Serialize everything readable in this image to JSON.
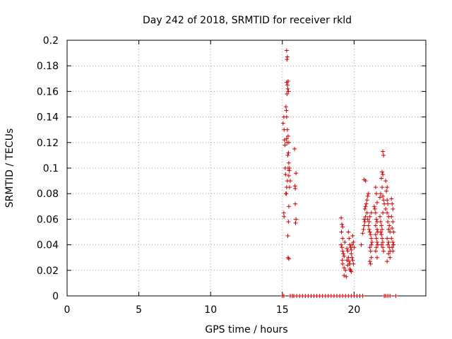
{
  "chart_data": {
    "type": "scatter",
    "title": "Day 242 of 2018, SRMTID for receiver rkld",
    "xlabel": "GPS time / hours",
    "ylabel": "SRMTID / TECUs",
    "xlim": [
      0,
      25
    ],
    "ylim": [
      0,
      0.2
    ],
    "xticks": [
      0,
      5,
      10,
      15,
      20
    ],
    "xtick_labels": [
      "0",
      "5",
      "10",
      "15",
      "20"
    ],
    "yticks": [
      0,
      0.02,
      0.04,
      0.06,
      0.08,
      0.1,
      0.12,
      0.14,
      0.16,
      0.18,
      0.2
    ],
    "ytick_labels": [
      "0",
      "0.02",
      "0.04",
      "0.06",
      "0.08",
      "0.1",
      "0.12",
      "0.14",
      "0.16",
      "0.18",
      "0.2"
    ],
    "grid": true,
    "marker": "+",
    "marker_color": "#cc0000",
    "series": [
      {
        "name": "SRMTID",
        "points": [
          [
            15.0,
            0.0
          ],
          [
            15.1,
            0.0
          ],
          [
            15.05,
            0.135
          ],
          [
            15.1,
            0.14
          ],
          [
            15.12,
            0.13
          ],
          [
            15.15,
            0.122
          ],
          [
            15.18,
            0.118
          ],
          [
            15.2,
            0.1
          ],
          [
            15.22,
            0.095
          ],
          [
            15.25,
            0.08
          ],
          [
            15.1,
            0.065
          ],
          [
            15.12,
            0.062
          ],
          [
            15.25,
            0.148
          ],
          [
            15.28,
            0.145
          ],
          [
            15.3,
            0.14
          ],
          [
            15.3,
            0.123
          ],
          [
            15.32,
            0.12
          ],
          [
            15.35,
            0.13
          ],
          [
            15.38,
            0.11
          ],
          [
            15.4,
            0.1
          ],
          [
            15.35,
            0.09
          ],
          [
            15.3,
            0.085
          ],
          [
            15.28,
            0.08
          ],
          [
            15.3,
            0.192
          ],
          [
            15.35,
            0.187
          ],
          [
            15.32,
            0.185
          ],
          [
            15.3,
            0.167
          ],
          [
            15.35,
            0.165
          ],
          [
            15.38,
            0.162
          ],
          [
            15.4,
            0.168
          ],
          [
            15.42,
            0.16
          ],
          [
            15.32,
            0.158
          ],
          [
            15.4,
            0.125
          ],
          [
            15.45,
            0.12
          ],
          [
            15.42,
            0.112
          ],
          [
            15.45,
            0.104
          ],
          [
            15.5,
            0.1
          ],
          [
            15.48,
            0.098
          ],
          [
            15.45,
            0.094
          ],
          [
            15.55,
            0.09
          ],
          [
            15.5,
            0.085
          ],
          [
            15.45,
            0.07
          ],
          [
            15.42,
            0.058
          ],
          [
            15.38,
            0.047
          ],
          [
            15.4,
            0.03
          ],
          [
            15.45,
            0.029
          ],
          [
            15.85,
            0.115
          ],
          [
            15.95,
            0.096
          ],
          [
            15.88,
            0.086
          ],
          [
            15.9,
            0.084
          ],
          [
            15.9,
            0.072
          ],
          [
            15.95,
            0.06
          ],
          [
            15.92,
            0.057
          ],
          [
            15.55,
            0.0
          ],
          [
            15.7,
            0.0
          ],
          [
            15.8,
            0.0
          ],
          [
            16.0,
            0.0
          ],
          [
            16.2,
            0.0
          ],
          [
            16.4,
            0.0
          ],
          [
            16.6,
            0.0
          ],
          [
            16.8,
            0.0
          ],
          [
            17.0,
            0.0
          ],
          [
            17.2,
            0.0
          ],
          [
            17.4,
            0.0
          ],
          [
            17.6,
            0.0
          ],
          [
            17.8,
            0.0
          ],
          [
            18.0,
            0.0
          ],
          [
            18.2,
            0.0
          ],
          [
            18.4,
            0.0
          ],
          [
            18.6,
            0.0
          ],
          [
            18.8,
            0.0
          ],
          [
            19.0,
            0.0
          ],
          [
            19.2,
            0.0
          ],
          [
            19.4,
            0.0
          ],
          [
            19.6,
            0.0
          ],
          [
            19.8,
            0.0
          ],
          [
            20.0,
            0.0
          ],
          [
            20.2,
            0.0
          ],
          [
            20.4,
            0.0
          ],
          [
            20.6,
            0.0
          ],
          [
            22.1,
            0.0
          ],
          [
            22.2,
            0.0
          ],
          [
            22.35,
            0.0
          ],
          [
            22.5,
            0.0
          ],
          [
            22.9,
            0.0
          ],
          [
            19.1,
            0.061
          ],
          [
            19.15,
            0.056
          ],
          [
            19.2,
            0.054
          ],
          [
            19.12,
            0.05
          ],
          [
            19.2,
            0.045
          ],
          [
            19.1,
            0.04
          ],
          [
            19.15,
            0.038
          ],
          [
            19.2,
            0.035
          ],
          [
            19.25,
            0.033
          ],
          [
            19.3,
            0.031
          ],
          [
            19.18,
            0.028
          ],
          [
            19.2,
            0.025
          ],
          [
            19.3,
            0.022
          ],
          [
            19.4,
            0.02
          ],
          [
            19.3,
            0.016
          ],
          [
            19.45,
            0.015
          ],
          [
            19.35,
            0.042
          ],
          [
            19.5,
            0.037
          ],
          [
            19.55,
            0.035
          ],
          [
            19.6,
            0.03
          ],
          [
            19.65,
            0.027
          ],
          [
            19.7,
            0.025
          ],
          [
            19.5,
            0.028
          ],
          [
            19.55,
            0.024
          ],
          [
            19.6,
            0.05
          ],
          [
            19.65,
            0.045
          ],
          [
            19.7,
            0.04
          ],
          [
            19.75,
            0.038
          ],
          [
            19.8,
            0.036
          ],
          [
            19.85,
            0.04
          ],
          [
            19.8,
            0.033
          ],
          [
            19.85,
            0.03
          ],
          [
            19.9,
            0.028
          ],
          [
            19.95,
            0.025
          ],
          [
            19.7,
            0.021
          ],
          [
            19.75,
            0.02
          ],
          [
            19.8,
            0.019
          ],
          [
            19.9,
            0.047
          ],
          [
            19.95,
            0.042
          ],
          [
            20.0,
            0.038
          ],
          [
            20.5,
            0.04
          ],
          [
            20.6,
            0.049
          ],
          [
            20.65,
            0.052
          ],
          [
            20.7,
            0.055
          ],
          [
            20.75,
            0.058
          ],
          [
            20.7,
            0.06
          ],
          [
            20.8,
            0.062
          ],
          [
            20.75,
            0.068
          ],
          [
            20.8,
            0.07
          ],
          [
            20.85,
            0.072
          ],
          [
            20.9,
            0.075
          ],
          [
            20.95,
            0.078
          ],
          [
            21.0,
            0.08
          ],
          [
            20.9,
            0.065
          ],
          [
            20.95,
            0.06
          ],
          [
            20.7,
            0.091
          ],
          [
            20.8,
            0.09
          ],
          [
            21.0,
            0.055
          ],
          [
            21.05,
            0.052
          ],
          [
            21.1,
            0.05
          ],
          [
            21.15,
            0.048
          ],
          [
            21.2,
            0.045
          ],
          [
            21.25,
            0.042
          ],
          [
            21.2,
            0.04
          ],
          [
            21.1,
            0.038
          ],
          [
            21.15,
            0.035
          ],
          [
            21.2,
            0.03
          ],
          [
            21.1,
            0.027
          ],
          [
            21.15,
            0.025
          ],
          [
            21.05,
            0.058
          ],
          [
            21.1,
            0.062
          ],
          [
            21.2,
            0.065
          ],
          [
            21.4,
            0.07
          ],
          [
            21.45,
            0.068
          ],
          [
            21.5,
            0.065
          ],
          [
            21.55,
            0.06
          ],
          [
            21.6,
            0.058
          ],
          [
            21.5,
            0.055
          ],
          [
            21.6,
            0.052
          ],
          [
            21.65,
            0.05
          ],
          [
            21.5,
            0.048
          ],
          [
            21.55,
            0.045
          ],
          [
            21.6,
            0.042
          ],
          [
            21.65,
            0.04
          ],
          [
            21.55,
            0.038
          ],
          [
            21.5,
            0.035
          ],
          [
            21.6,
            0.03
          ],
          [
            21.5,
            0.085
          ],
          [
            21.55,
            0.08
          ],
          [
            21.6,
            0.073
          ],
          [
            21.8,
            0.062
          ],
          [
            21.85,
            0.058
          ],
          [
            21.9,
            0.055
          ],
          [
            21.95,
            0.052
          ],
          [
            21.85,
            0.05
          ],
          [
            21.9,
            0.048
          ],
          [
            21.95,
            0.045
          ],
          [
            22.0,
            0.042
          ],
          [
            21.9,
            0.04
          ],
          [
            22.0,
            0.038
          ],
          [
            22.05,
            0.035
          ],
          [
            22.0,
            0.113
          ],
          [
            22.05,
            0.11
          ],
          [
            21.95,
            0.097
          ],
          [
            22.0,
            0.095
          ],
          [
            21.9,
            0.092
          ],
          [
            21.95,
            0.085
          ],
          [
            22.0,
            0.078
          ],
          [
            22.05,
            0.075
          ],
          [
            21.85,
            0.08
          ],
          [
            21.8,
            0.077
          ],
          [
            22.1,
            0.072
          ],
          [
            22.0,
            0.065
          ],
          [
            22.2,
            0.09
          ],
          [
            22.3,
            0.085
          ],
          [
            22.25,
            0.082
          ],
          [
            22.3,
            0.075
          ],
          [
            22.35,
            0.072
          ],
          [
            22.2,
            0.068
          ],
          [
            22.3,
            0.065
          ],
          [
            22.4,
            0.062
          ],
          [
            22.35,
            0.058
          ],
          [
            22.45,
            0.055
          ],
          [
            22.4,
            0.052
          ],
          [
            22.5,
            0.05
          ],
          [
            22.3,
            0.045
          ],
          [
            22.4,
            0.042
          ],
          [
            22.35,
            0.04
          ],
          [
            22.45,
            0.038
          ],
          [
            22.5,
            0.035
          ],
          [
            22.4,
            0.033
          ],
          [
            22.5,
            0.03
          ],
          [
            22.3,
            0.027
          ],
          [
            22.6,
            0.076
          ],
          [
            22.65,
            0.072
          ],
          [
            22.7,
            0.068
          ],
          [
            22.6,
            0.062
          ],
          [
            22.7,
            0.058
          ],
          [
            22.65,
            0.053
          ],
          [
            22.75,
            0.05
          ],
          [
            22.6,
            0.045
          ],
          [
            22.7,
            0.042
          ],
          [
            22.75,
            0.04
          ],
          [
            22.65,
            0.038
          ],
          [
            22.7,
            0.035
          ]
        ]
      }
    ]
  }
}
